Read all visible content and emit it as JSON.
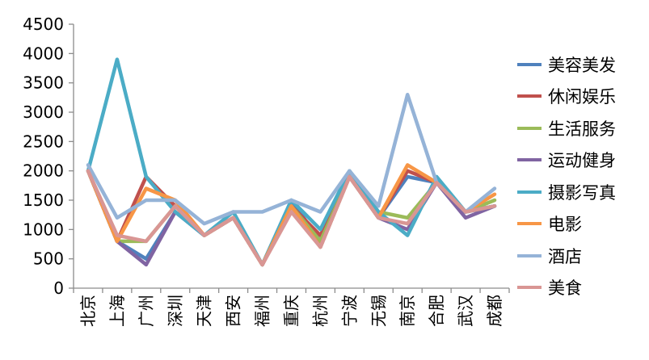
{
  "chart_data": {
    "type": "line",
    "categories": [
      "北京",
      "上海",
      "广州",
      "深圳",
      "天津",
      "西安",
      "福州",
      "重庆",
      "杭州",
      "宁波",
      "无锡",
      "南京",
      "合肥",
      "武汉",
      "成都"
    ],
    "ylim": [
      0,
      4500
    ],
    "yticks": [
      0,
      500,
      1000,
      1500,
      2000,
      2500,
      3000,
      3500,
      4000,
      4500
    ],
    "legend_position": "right",
    "grid": false,
    "series": [
      {
        "name": "美容美发",
        "color": "#4F81BD",
        "values": [
          2000,
          800,
          500,
          1300,
          900,
          1200,
          400,
          1500,
          800,
          1900,
          1200,
          1900,
          1800,
          1300,
          1400
        ]
      },
      {
        "name": "休闲娱乐",
        "color": "#C0504D",
        "values": [
          2000,
          800,
          1900,
          1400,
          900,
          1200,
          400,
          1400,
          900,
          1900,
          1200,
          2000,
          1800,
          1300,
          1400
        ]
      },
      {
        "name": "生活服务",
        "color": "#9BBB59",
        "values": [
          2000,
          800,
          800,
          1400,
          900,
          1200,
          400,
          1400,
          800,
          1900,
          1300,
          1200,
          1800,
          1300,
          1500
        ]
      },
      {
        "name": "运动健身",
        "color": "#8064A2",
        "values": [
          2000,
          800,
          400,
          1300,
          900,
          1200,
          400,
          1400,
          700,
          1900,
          1200,
          1000,
          1800,
          1200,
          1400
        ]
      },
      {
        "name": "摄影写真",
        "color": "#4BACC6",
        "values": [
          2000,
          3900,
          1900,
          1300,
          900,
          1300,
          400,
          1500,
          1000,
          2000,
          1300,
          900,
          1900,
          1300,
          1400
        ]
      },
      {
        "name": "电影",
        "color": "#F79646",
        "values": [
          2000,
          800,
          1700,
          1500,
          900,
          1200,
          400,
          1400,
          700,
          1900,
          1200,
          2100,
          1800,
          1300,
          1600
        ]
      },
      {
        "name": "酒店",
        "color": "#95B3D7",
        "values": [
          2100,
          1200,
          1500,
          1500,
          1100,
          1300,
          1300,
          1500,
          1300,
          2000,
          1400,
          3300,
          1800,
          1300,
          1700
        ]
      },
      {
        "name": "美食",
        "color": "#D99694",
        "values": [
          2000,
          900,
          800,
          1400,
          900,
          1200,
          400,
          1300,
          700,
          1900,
          1200,
          1100,
          1800,
          1300,
          1400
        ]
      }
    ]
  }
}
